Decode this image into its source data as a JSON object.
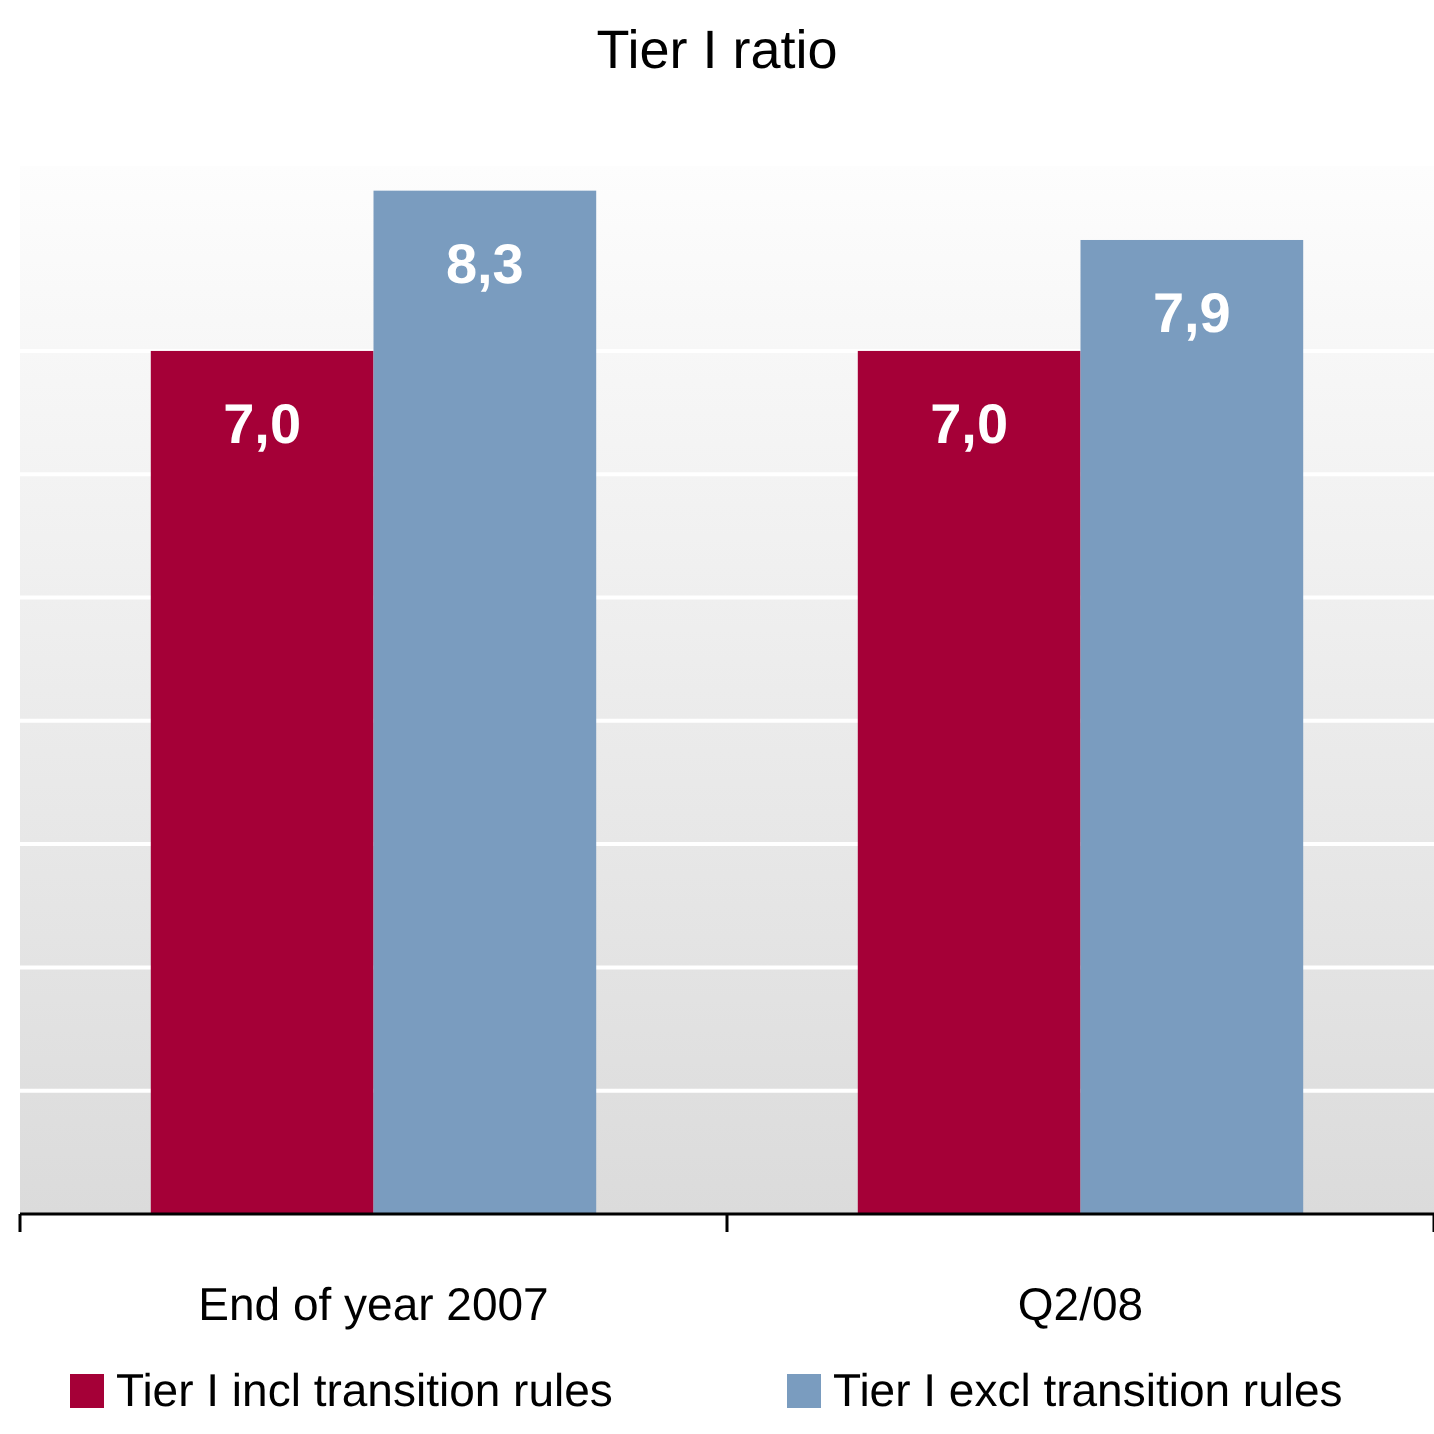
{
  "chart_data": {
    "type": "bar",
    "title": "Tier I ratio",
    "categories": [
      "End of year 2007",
      "Q2/08"
    ],
    "series": [
      {
        "name": "Tier I incl transition rules",
        "color": "#a50037",
        "values": [
          7.0,
          7.0
        ],
        "value_labels": [
          "7,0",
          "7,0"
        ]
      },
      {
        "name": "Tier I excl transition rules",
        "color": "#7a9cbf",
        "values": [
          8.3,
          7.9
        ],
        "value_labels": [
          "8,3",
          "7,9"
        ]
      }
    ],
    "ylim": [
      0,
      8.5
    ],
    "yticks": [
      {
        "value": 1,
        "label": null
      },
      {
        "value": 2,
        "label": null
      },
      {
        "value": 3,
        "label": null
      },
      {
        "value": 4,
        "label": null
      },
      {
        "value": 5,
        "label": null
      },
      {
        "value": 6,
        "label": null
      },
      {
        "value": 7,
        "label": null
      }
    ],
    "grid": "y",
    "tick_labels": "x",
    "legend": "bottom"
  }
}
